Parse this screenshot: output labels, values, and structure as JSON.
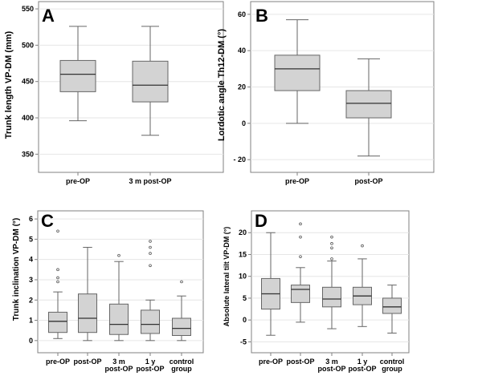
{
  "chart_data": [
    {
      "type": "box",
      "panel": "A",
      "ylabel": "Trunk length VP-DM (mm)",
      "ylim": [
        325,
        560
      ],
      "yticks": [
        350,
        400,
        450,
        500,
        550
      ],
      "grid": true,
      "categories": [
        [
          "pre-OP"
        ],
        [
          "3 m post-OP"
        ]
      ],
      "boxes": [
        {
          "min": 396,
          "q1": 436,
          "median": 460,
          "q3": 479,
          "max": 526,
          "outliers": []
        },
        {
          "min": 376,
          "q1": 422,
          "median": 445,
          "q3": 478,
          "max": 526,
          "outliers": []
        }
      ]
    },
    {
      "type": "box",
      "panel": "B",
      "ylabel": "Lordotic angle Th12-DM (°)",
      "ylim": [
        -27,
        67
      ],
      "yticks": [
        -20,
        0,
        20,
        40,
        60
      ],
      "ytick_labels": [
        "- 20",
        "0",
        "20",
        "40",
        "60"
      ],
      "grid": true,
      "categories": [
        [
          "pre-OP"
        ],
        [
          "post-OP"
        ]
      ],
      "boxes": [
        {
          "min": 0,
          "q1": 18,
          "median": 30,
          "q3": 37.5,
          "max": 57,
          "outliers": []
        },
        {
          "min": -18,
          "q1": 3,
          "median": 11,
          "q3": 18,
          "max": 35.5,
          "outliers": []
        }
      ]
    },
    {
      "type": "box",
      "panel": "C",
      "ylabel": "Trunk inclination VP-DM (°)",
      "ylim": [
        -0.6,
        6.4
      ],
      "yticks": [
        0,
        1,
        2,
        3,
        4,
        5,
        6
      ],
      "grid": true,
      "categories": [
        [
          "pre-OP"
        ],
        [
          "post-OP"
        ],
        [
          "3 m",
          "post-OP"
        ],
        [
          "1 y",
          "post-OP"
        ],
        [
          "control",
          "group"
        ]
      ],
      "boxes": [
        {
          "min": 0.1,
          "q1": 0.4,
          "median": 0.95,
          "q3": 1.4,
          "max": 2.4,
          "outliers": [
            2.9,
            3.1,
            3.5,
            5.4
          ]
        },
        {
          "min": 0.0,
          "q1": 0.4,
          "median": 1.1,
          "q3": 2.3,
          "max": 4.6,
          "outliers": []
        },
        {
          "min": 0.0,
          "q1": 0.3,
          "median": 0.8,
          "q3": 1.8,
          "max": 3.9,
          "outliers": [
            4.2
          ]
        },
        {
          "min": 0.0,
          "q1": 0.35,
          "median": 0.8,
          "q3": 1.5,
          "max": 2.0,
          "outliers": [
            3.7,
            4.3,
            4.6,
            4.9
          ]
        },
        {
          "min": 0.0,
          "q1": 0.25,
          "median": 0.6,
          "q3": 1.1,
          "max": 2.2,
          "outliers": [
            2.9
          ]
        }
      ]
    },
    {
      "type": "box",
      "panel": "D",
      "ylabel": "Absolute lateral tilt VP-DM (°)",
      "ylim": [
        -7.5,
        25
      ],
      "yticks": [
        -5,
        0,
        5,
        10,
        15,
        20
      ],
      "ytick_labels": [
        "-5",
        "0",
        "5",
        "10",
        "15",
        "20"
      ],
      "grid": true,
      "categories": [
        [
          "pre-OP"
        ],
        [
          "post-OP"
        ],
        [
          "3 m",
          "post-OP"
        ],
        [
          "1 y",
          "post-OP"
        ],
        [
          "control",
          "group"
        ]
      ],
      "boxes": [
        {
          "min": -3.5,
          "q1": 2.5,
          "median": 6,
          "q3": 9.5,
          "max": 20,
          "outliers": []
        },
        {
          "min": -0.5,
          "q1": 4,
          "median": 7,
          "q3": 8,
          "max": 12,
          "outliers": [
            14.5,
            19,
            22
          ]
        },
        {
          "min": -2,
          "q1": 3,
          "median": 4.8,
          "q3": 7.5,
          "max": 13.5,
          "outliers": [
            14,
            16.5,
            17.5,
            19
          ]
        },
        {
          "min": -1.5,
          "q1": 3.5,
          "median": 5.5,
          "q3": 7.5,
          "max": 14,
          "outliers": [
            17
          ]
        },
        {
          "min": -3,
          "q1": 1.5,
          "median": 3,
          "q3": 5,
          "max": 8,
          "outliers": []
        }
      ]
    }
  ]
}
